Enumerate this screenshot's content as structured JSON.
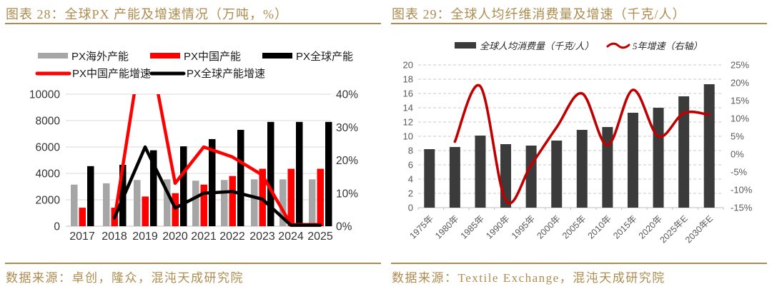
{
  "colors": {
    "accent_gold": "#AE8C4E",
    "red": "#FF0000",
    "dark_red": "#C00000",
    "gray_bar": "#A6A6A6",
    "black": "#000000",
    "dark_bar": "#3B3B3B",
    "grid_light": "#D9D9D9",
    "axis_line": "#BFBFBF",
    "axis_text_left_chart": "#333333",
    "axis_text_right_chart": "#595959",
    "legend_text": "#1A1A1A"
  },
  "figures": [
    {
      "title": "图表 28：全球PX 产能及增速情况（万吨，%）",
      "source": "数据来源：卓创，隆众，混沌天成研究院"
    },
    {
      "title": "图表 29：全球人均纤维消费量及增速（千克/人）",
      "source": "数据来源：Textile Exchange，混沌天成研究院"
    }
  ],
  "chart_data": [
    {
      "id": "fig28-px-capacity",
      "type": "bar+line",
      "title": "全球PX产能及增速情况",
      "units": "万吨, %",
      "legend_position": "top",
      "grid": "solid",
      "categories": [
        "2017",
        "2018",
        "2019",
        "2020",
        "2021",
        "2022",
        "2023",
        "2024",
        "2025"
      ],
      "bar_series": [
        {
          "name": "PX海外产能",
          "color": "#A6A6A6",
          "values": [
            3150,
            3250,
            3500,
            3550,
            3450,
            3500,
            3550,
            3550,
            3550
          ]
        },
        {
          "name": "PX中国产能",
          "color": "#FF0000",
          "values": [
            1400,
            1400,
            2250,
            2500,
            3150,
            3800,
            4350,
            4350,
            4350
          ]
        },
        {
          "name": "PX全球产能",
          "color": "#000000",
          "values": [
            4550,
            4650,
            5750,
            6050,
            6600,
            7300,
            7900,
            7900,
            7900
          ]
        }
      ],
      "line_series": [
        {
          "name": "PX中国产能增速",
          "color": "#FF0000",
          "axis": "right",
          "smooth": false,
          "values": [
            null,
            2,
            61,
            13,
            24,
            21,
            15.5,
            0.5,
            0.5
          ]
        },
        {
          "name": "PX全球产能增速",
          "color": "#000000",
          "axis": "right",
          "smooth": false,
          "values": [
            null,
            2.5,
            24,
            5.5,
            10,
            10.5,
            8.2,
            0.3,
            0.3
          ]
        }
      ],
      "left_axis": {
        "min": 0,
        "max": 10000,
        "ticks": [
          "0",
          "2000",
          "4000",
          "6000",
          "8000",
          "10000"
        ]
      },
      "right_axis": {
        "min": 0,
        "max": 40,
        "ticks": [
          "0%",
          "10%",
          "20%",
          "30%",
          "40%"
        ]
      },
      "annotation": "PX中国产能增速2019年约61%，超出右轴上限40%，折线在绘图区顶部被截断"
    },
    {
      "id": "fig29-fiber-consumption",
      "type": "bar+line",
      "title": "全球人均纤维消费量及增速",
      "units": "千克/人, %",
      "legend_position": "top",
      "grid": "dashed",
      "categories": [
        "1975年",
        "1980年",
        "1985年",
        "1990年",
        "1995年",
        "2000年",
        "2005年",
        "2010年",
        "2015年",
        "2020年",
        "2025年E",
        "2030年E"
      ],
      "bar_series": [
        {
          "name": "全球人均消费量（千克/人）",
          "color": "#3B3B3B",
          "values": [
            8.2,
            8.5,
            10.1,
            8.9,
            8.7,
            9.4,
            10.9,
            11.3,
            13.3,
            14.0,
            15.6,
            17.3
          ]
        }
      ],
      "line_series": [
        {
          "name": "5年增速（右轴）",
          "color": "#C00000",
          "axis": "right",
          "smooth": true,
          "values": [
            null,
            3.5,
            19,
            -13,
            -3,
            7.5,
            17,
            2.5,
            18,
            5,
            11.5,
            11
          ]
        }
      ],
      "left_axis": {
        "min": 0,
        "max": 20,
        "ticks": [
          "0",
          "2",
          "4",
          "6",
          "8",
          "10",
          "12",
          "14",
          "16",
          "18",
          "20"
        ]
      },
      "right_axis": {
        "min": -15,
        "max": 25,
        "ticks": [
          "-15%",
          "-10%",
          "-5%",
          "0%",
          "5%",
          "10%",
          "15%",
          "20%",
          "25%"
        ]
      }
    }
  ]
}
